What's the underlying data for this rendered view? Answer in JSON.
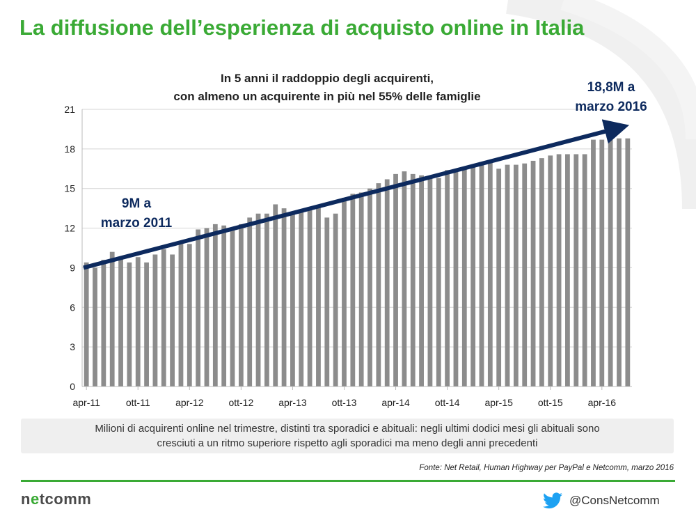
{
  "header": {
    "title": "La diffusione dell’esperienza di acquisto online in Italia"
  },
  "chart_data": {
    "type": "bar",
    "subtitle_lines": [
      "In 5 anni il raddoppio degli acquirenti,",
      "con almeno un acquirente in più nel 55% delle famiglie"
    ],
    "ylim": [
      0,
      21
    ],
    "yticks": [
      0,
      3,
      6,
      9,
      12,
      15,
      18,
      21
    ],
    "xtick_labels": [
      "apr-11",
      "ott-11",
      "apr-12",
      "ott-12",
      "apr-13",
      "ott-13",
      "apr-14",
      "ott-14",
      "apr-15",
      "ott-15",
      "apr-16"
    ],
    "grid": true,
    "bar_color": "#8c8c8c",
    "values": [
      9.4,
      9.0,
      9.6,
      10.2,
      9.8,
      9.4,
      9.8,
      9.4,
      10.0,
      10.4,
      10.0,
      10.8,
      10.8,
      11.9,
      12.0,
      12.3,
      12.2,
      12.0,
      12.3,
      12.8,
      13.1,
      13.1,
      13.8,
      13.5,
      13.2,
      13.4,
      13.6,
      13.6,
      12.8,
      13.1,
      14.3,
      14.6,
      14.7,
      15.0,
      15.4,
      15.7,
      16.1,
      16.3,
      16.1,
      16.0,
      15.9,
      15.8,
      16.4,
      16.4,
      16.5,
      16.8,
      17.0,
      17.1,
      16.5,
      16.8,
      16.8,
      16.9,
      17.1,
      17.3,
      17.5,
      17.6,
      17.6,
      17.6,
      17.6,
      18.7,
      18.7,
      18.7,
      18.8,
      18.8
    ],
    "trend_arrow": {
      "from": 9.0,
      "to": 19.5,
      "color": "#0d2a5e"
    },
    "annotations": [
      {
        "lines": [
          "9M a",
          "marzo 2011"
        ]
      },
      {
        "lines": [
          "18,8M a",
          "marzo 2016"
        ]
      }
    ]
  },
  "caption": {
    "line1": "Milioni di acquirenti online nel trimestre, distinti tra sporadici e abituali: negli ultimi dodici mesi gli abituali sono",
    "line2": "cresciuti a un ritmo superiore rispetto agli sporadici ma meno degli anni precedenti"
  },
  "source": "Fonte: Net Retail, Human Highway per PayPal e Netcomm, marzo 2016",
  "footer": {
    "logo_part1": "n",
    "logo_accent": "e",
    "logo_part2": "tcomm",
    "handle": "@ConsNetcomm"
  },
  "icons": {
    "social": "twitter-bird-icon"
  },
  "colors": {
    "brand_green": "#3aaa35",
    "arrow_navy": "#0d2a5e"
  }
}
